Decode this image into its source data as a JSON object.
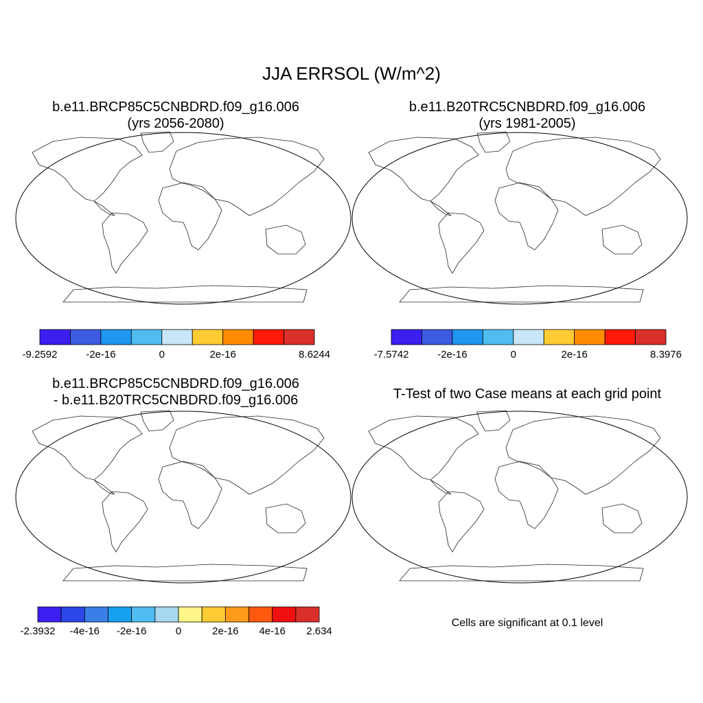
{
  "figure": {
    "title": "JJA ERRSOL (W/m^2)",
    "panels": [
      {
        "title_line1": "b.e11.BRCP85C5CNBDRD.f09_g16.006",
        "title_line2": "(yrs 2056-2080)",
        "colorbar": {
          "colors": [
            "#3b1ff0",
            "#3c5be0",
            "#1f96f0",
            "#4fbdf0",
            "#c8e6f8",
            "#ffcc33",
            "#ff8c00",
            "#ff1a0a",
            "#d9302c"
          ],
          "tick_labels": [
            "-9.2592",
            "-2e-16",
            "0",
            "2e-16",
            "8.6244"
          ]
        }
      },
      {
        "title_line1": "b.e11.B20TRC5CNBDRD.f09_g16.006",
        "title_line2": "(yrs 1981-2005)",
        "colorbar": {
          "colors": [
            "#3b1ff0",
            "#3c5be0",
            "#1f96f0",
            "#4fbdf0",
            "#c8e6f8",
            "#ffcc33",
            "#ff8c00",
            "#ff1a0a",
            "#d9302c"
          ],
          "tick_labels": [
            "-7.5742",
            "-2e-16",
            "0",
            "2e-16",
            "8.3976"
          ]
        }
      },
      {
        "title_line1": "b.e11.BRCP85C5CNBDRD.f09_g16.006",
        "title_line2": "- b.e11.B20TRC5CNBDRD.f09_g16.006",
        "colorbar": {
          "colors": [
            "#3b1ff0",
            "#2c46e8",
            "#3a7fe8",
            "#15a0f0",
            "#4fbdf0",
            "#a8d8f0",
            "#fff68a",
            "#ffcc33",
            "#ff9a1a",
            "#ff5a10",
            "#f01010",
            "#d9302c"
          ],
          "tick_labels": [
            "-2.3932",
            "-4e-16",
            "-2e-16",
            "0",
            "2e-16",
            "4e-16",
            "2.634"
          ]
        }
      },
      {
        "title_line1": "T-Test of two Case means at each grid point",
        "footnote": "Cells are significant at 0.1 level",
        "marker_color": "#e0201a"
      }
    ]
  }
}
